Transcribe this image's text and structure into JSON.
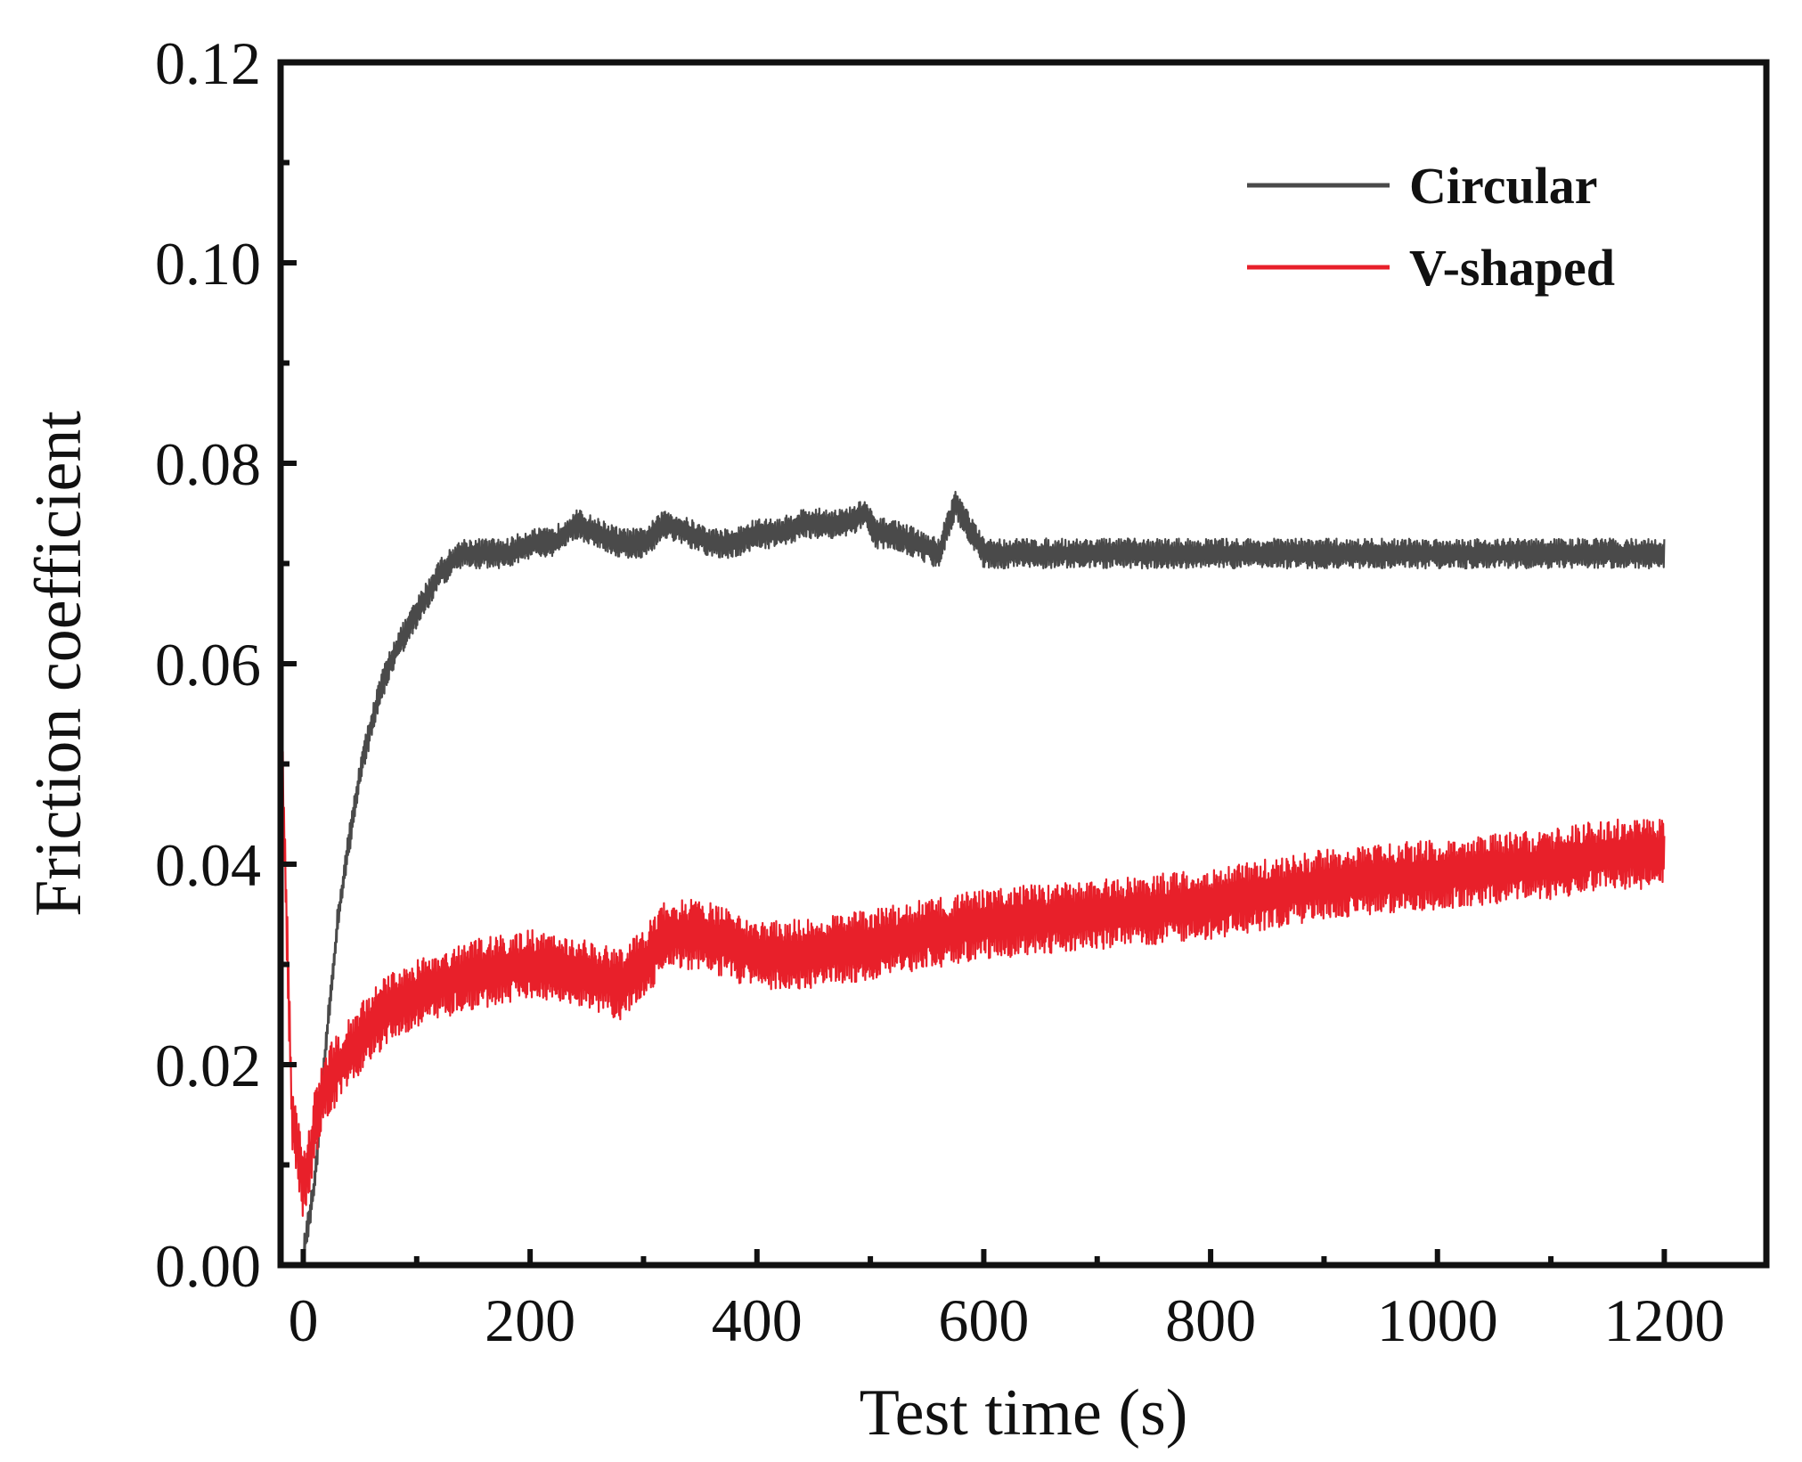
{
  "chart_data": {
    "type": "line",
    "title": "",
    "xlabel": "Test time (s)",
    "ylabel": "Friction coefficient",
    "xlim": [
      -20,
      1290
    ],
    "ylim": [
      0,
      0.12
    ],
    "x_ticks": [
      0,
      200,
      400,
      600,
      800,
      1000,
      1200
    ],
    "x_tick_labels": [
      "0",
      "200",
      "400",
      "600",
      "800",
      "1000",
      "1200"
    ],
    "y_ticks": [
      0,
      0.02,
      0.04,
      0.06,
      0.08,
      0.1,
      0.12
    ],
    "y_tick_labels": [
      "0.00",
      "0.02",
      "0.04",
      "0.06",
      "0.08",
      "0.10",
      "0.12"
    ],
    "grid": false,
    "legend_position": "top-right",
    "series": [
      {
        "name": "Circular",
        "color": "#4a4a4a",
        "noise_amplitude": 0.0015,
        "x": [
          0,
          10,
          20,
          30,
          40,
          50,
          60,
          70,
          80,
          90,
          100,
          110,
          120,
          130,
          140,
          160,
          180,
          200,
          220,
          240,
          260,
          280,
          300,
          320,
          340,
          360,
          380,
          400,
          420,
          440,
          460,
          480,
          495,
          505,
          520,
          540,
          560,
          575,
          585,
          600,
          650,
          700,
          750,
          800,
          850,
          900,
          950,
          1000,
          1050,
          1100,
          1150,
          1200
        ],
        "y": [
          0.001,
          0.008,
          0.022,
          0.034,
          0.042,
          0.049,
          0.054,
          0.058,
          0.061,
          0.063,
          0.065,
          0.067,
          0.069,
          0.07,
          0.071,
          0.071,
          0.071,
          0.072,
          0.072,
          0.074,
          0.073,
          0.072,
          0.072,
          0.074,
          0.073,
          0.072,
          0.072,
          0.073,
          0.073,
          0.074,
          0.074,
          0.074,
          0.075,
          0.073,
          0.073,
          0.072,
          0.071,
          0.076,
          0.074,
          0.071,
          0.071,
          0.071,
          0.071,
          0.071,
          0.071,
          0.071,
          0.071,
          0.071,
          0.071,
          0.071,
          0.071,
          0.071
        ]
      },
      {
        "name": "V-shaped",
        "color": "#e8202a",
        "noise_amplitude": 0.0035,
        "x": [
          -20,
          -10,
          0,
          5,
          10,
          20,
          40,
          60,
          80,
          100,
          120,
          150,
          200,
          250,
          280,
          300,
          320,
          350,
          400,
          450,
          500,
          600,
          700,
          800,
          900,
          1000,
          1100,
          1150,
          1200
        ],
        "y": [
          0.056,
          0.015,
          0.008,
          0.01,
          0.014,
          0.018,
          0.021,
          0.024,
          0.026,
          0.027,
          0.028,
          0.029,
          0.03,
          0.029,
          0.028,
          0.03,
          0.033,
          0.033,
          0.031,
          0.031,
          0.032,
          0.034,
          0.035,
          0.036,
          0.038,
          0.039,
          0.04,
          0.041,
          0.041
        ]
      }
    ]
  }
}
